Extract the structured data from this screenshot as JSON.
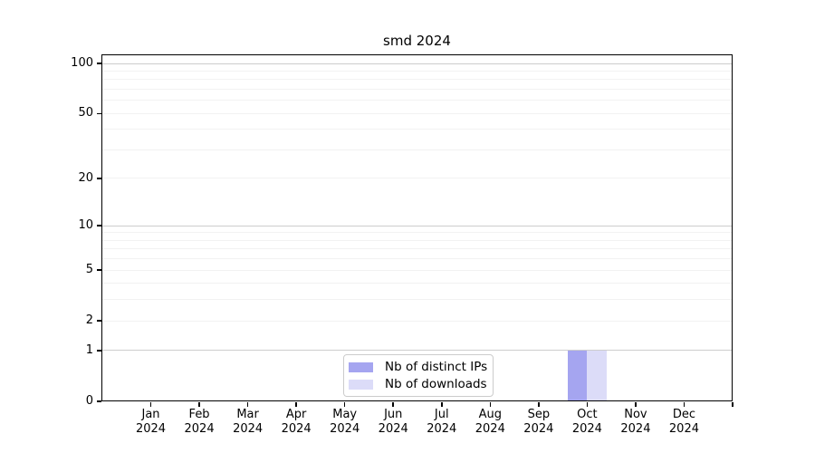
{
  "chart_data": {
    "type": "bar",
    "title": "smd 2024",
    "categories": [
      "Jan",
      "Feb",
      "Mar",
      "Apr",
      "May",
      "Jun",
      "Jul",
      "Aug",
      "Sep",
      "Oct",
      "Nov",
      "Dec"
    ],
    "category_year": "2024",
    "series": [
      {
        "name": "Nb of distinct IPs",
        "color": "#a5a5f0",
        "values": [
          0,
          0,
          0,
          0,
          0,
          0,
          0,
          0,
          0,
          1,
          0,
          0
        ]
      },
      {
        "name": "Nb of downloads",
        "color": "#dcdcf8",
        "values": [
          0,
          0,
          0,
          0,
          0,
          0,
          0,
          0,
          0,
          1,
          0,
          0
        ]
      }
    ],
    "yscale": "log1p",
    "ylim": [
      0,
      112
    ],
    "ytick_values": [
      0,
      1,
      2,
      5,
      10,
      20,
      50,
      100
    ],
    "ytick_labels": [
      "0",
      "1",
      "2",
      "5",
      "10",
      "20",
      "50",
      "100"
    ],
    "major_gridlines": [
      1,
      10,
      100
    ],
    "minor_gridlines": [
      2,
      3,
      4,
      5,
      6,
      7,
      8,
      9,
      20,
      30,
      40,
      50,
      60,
      70,
      80,
      90
    ],
    "grid": "on",
    "legend_position": "lower center",
    "colors": {
      "major_grid": "#cdcdcd",
      "minor_grid": "#f2f2f2",
      "axis": "#000000",
      "legend_border": "#cccccc",
      "background": "#ffffff"
    }
  }
}
